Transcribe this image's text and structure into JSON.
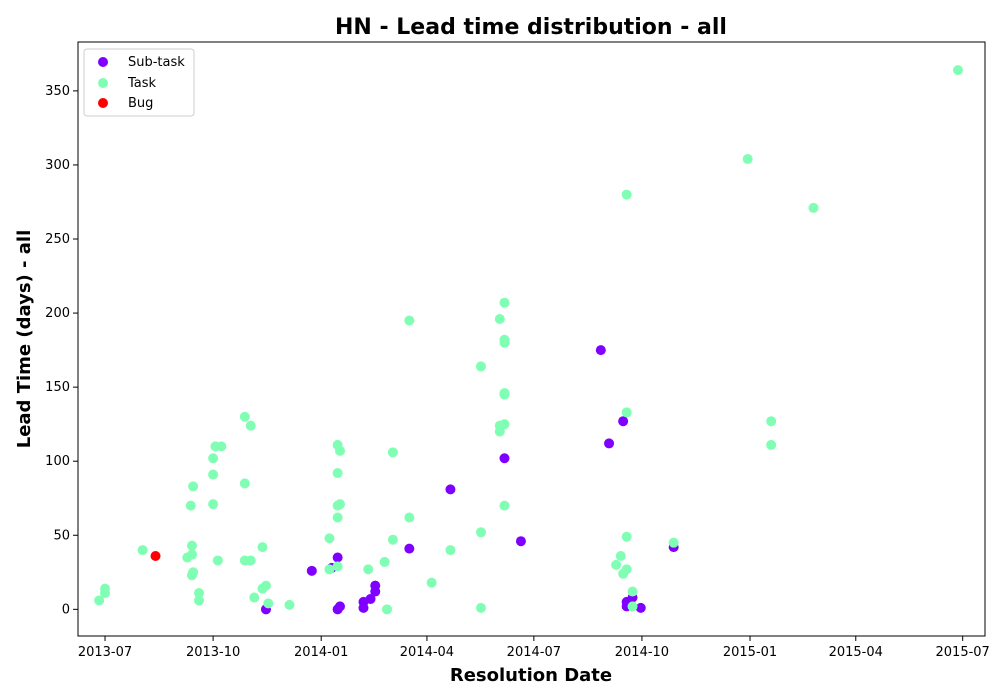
{
  "chart_data": {
    "type": "scatter",
    "title": "HN - Lead time distribution - all",
    "xlabel": "Resolution Date",
    "ylabel": "Lead Time (days) - all",
    "xlim": [
      "2013-06-08",
      "2015-07-20"
    ],
    "ylim": [
      -18,
      383
    ],
    "x_ticks": [
      {
        "date": "2013-07-01",
        "label": "2013-07"
      },
      {
        "date": "2013-10-01",
        "label": "2013-10"
      },
      {
        "date": "2014-01-01",
        "label": "2014-01"
      },
      {
        "date": "2014-04-01",
        "label": "2014-04"
      },
      {
        "date": "2014-07-01",
        "label": "2014-07"
      },
      {
        "date": "2014-10-01",
        "label": "2014-10"
      },
      {
        "date": "2015-01-01",
        "label": "2015-01"
      },
      {
        "date": "2015-04-01",
        "label": "2015-04"
      },
      {
        "date": "2015-07-01",
        "label": "2015-07"
      }
    ],
    "y_ticks": [
      0,
      50,
      100,
      150,
      200,
      250,
      300,
      350
    ],
    "grid": false,
    "legend_position": "top-left",
    "series": [
      {
        "name": "Sub-task",
        "color": "#8000ff",
        "points": [
          [
            "2013-11-15",
            0
          ],
          [
            "2013-12-24",
            26
          ],
          [
            "2014-01-10",
            28
          ],
          [
            "2014-01-15",
            35
          ],
          [
            "2014-01-15",
            0
          ],
          [
            "2014-01-17",
            2
          ],
          [
            "2014-02-06",
            1
          ],
          [
            "2014-02-06",
            5
          ],
          [
            "2014-02-12",
            7
          ],
          [
            "2014-02-16",
            12
          ],
          [
            "2014-02-16",
            16
          ],
          [
            "2014-03-17",
            41
          ],
          [
            "2014-04-21",
            81
          ],
          [
            "2014-06-06",
            102
          ],
          [
            "2014-06-20",
            46
          ],
          [
            "2014-08-27",
            175
          ],
          [
            "2014-09-03",
            112
          ],
          [
            "2014-09-15",
            127
          ],
          [
            "2014-09-18",
            5
          ],
          [
            "2014-09-18",
            2
          ],
          [
            "2014-09-23",
            8
          ],
          [
            "2014-09-30",
            1
          ],
          [
            "2014-10-28",
            42
          ]
        ]
      },
      {
        "name": "Task",
        "color": "#80ffb4",
        "points": [
          [
            "2013-06-26",
            6
          ],
          [
            "2013-07-01",
            11
          ],
          [
            "2013-07-01",
            14
          ],
          [
            "2013-08-02",
            40
          ],
          [
            "2013-09-09",
            35
          ],
          [
            "2013-09-12",
            70
          ],
          [
            "2013-09-13",
            43
          ],
          [
            "2013-09-13",
            37
          ],
          [
            "2013-09-13",
            23
          ],
          [
            "2013-09-14",
            25
          ],
          [
            "2013-09-14",
            83
          ],
          [
            "2013-09-19",
            11
          ],
          [
            "2013-09-19",
            6
          ],
          [
            "2013-10-01",
            102
          ],
          [
            "2013-10-01",
            91
          ],
          [
            "2013-10-01",
            71
          ],
          [
            "2013-10-03",
            110
          ],
          [
            "2013-10-05",
            33
          ],
          [
            "2013-10-08",
            110
          ],
          [
            "2013-10-28",
            130
          ],
          [
            "2013-10-28",
            85
          ],
          [
            "2013-10-28",
            33
          ],
          [
            "2013-11-02",
            124
          ],
          [
            "2013-11-02",
            33
          ],
          [
            "2013-11-05",
            8
          ],
          [
            "2013-11-12",
            14
          ],
          [
            "2013-11-12",
            42
          ],
          [
            "2013-11-15",
            16
          ],
          [
            "2013-11-17",
            4
          ],
          [
            "2013-12-05",
            3
          ],
          [
            "2014-01-08",
            48
          ],
          [
            "2014-01-08",
            27
          ],
          [
            "2014-01-15",
            111
          ],
          [
            "2014-01-15",
            92
          ],
          [
            "2014-01-15",
            70
          ],
          [
            "2014-01-15",
            62
          ],
          [
            "2014-01-15",
            29
          ],
          [
            "2014-01-17",
            107
          ],
          [
            "2014-01-17",
            71
          ],
          [
            "2014-02-10",
            27
          ],
          [
            "2014-02-24",
            32
          ],
          [
            "2014-02-26",
            0
          ],
          [
            "2014-03-03",
            106
          ],
          [
            "2014-03-03",
            47
          ],
          [
            "2014-03-17",
            195
          ],
          [
            "2014-03-17",
            62
          ],
          [
            "2014-04-05",
            18
          ],
          [
            "2014-04-21",
            40
          ],
          [
            "2014-05-17",
            164
          ],
          [
            "2014-05-17",
            52
          ],
          [
            "2014-05-17",
            1
          ],
          [
            "2014-06-02",
            196
          ],
          [
            "2014-06-02",
            124
          ],
          [
            "2014-06-02",
            120
          ],
          [
            "2014-06-06",
            207
          ],
          [
            "2014-06-06",
            182
          ],
          [
            "2014-06-06",
            180
          ],
          [
            "2014-06-06",
            146
          ],
          [
            "2014-06-06",
            145
          ],
          [
            "2014-06-06",
            125
          ],
          [
            "2014-06-06",
            70
          ],
          [
            "2014-09-09",
            30
          ],
          [
            "2014-09-13",
            36
          ],
          [
            "2014-09-15",
            24
          ],
          [
            "2014-09-18",
            280
          ],
          [
            "2014-09-18",
            133
          ],
          [
            "2014-09-18",
            49
          ],
          [
            "2014-09-18",
            27
          ],
          [
            "2014-09-23",
            12
          ],
          [
            "2014-09-23",
            2
          ],
          [
            "2014-10-28",
            45
          ],
          [
            "2014-12-30",
            304
          ],
          [
            "2015-01-19",
            127
          ],
          [
            "2015-01-19",
            111
          ],
          [
            "2015-02-24",
            271
          ],
          [
            "2015-06-27",
            364
          ]
        ]
      },
      {
        "name": "Bug",
        "color": "#ff0000",
        "points": [
          [
            "2013-08-13",
            36
          ]
        ]
      }
    ]
  }
}
